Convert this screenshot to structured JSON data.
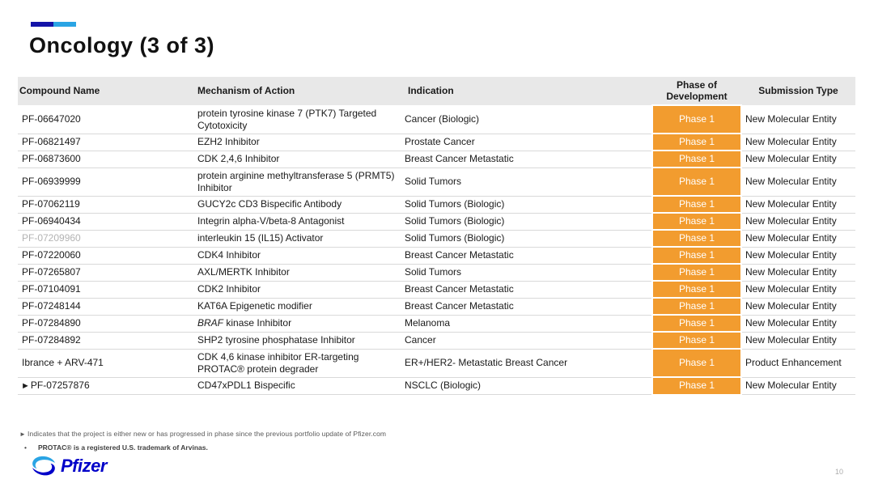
{
  "slide": {
    "title": "Oncology (3 of 3)",
    "page_number": "10",
    "accent_colors": {
      "dark_blue": "#1414A8",
      "light_blue": "#2AA4E4"
    }
  },
  "table": {
    "headers": {
      "compound": "Compound Name",
      "mechanism": "Mechanism of Action",
      "indication": "Indication",
      "phase": "Phase of Development",
      "submission": "Submission Type"
    },
    "phase_badge_color": "#F29C2F",
    "rows": [
      {
        "compound": "PF-06647020",
        "mechanism": "protein tyrosine kinase 7 (PTK7) Targeted Cytotoxicity",
        "indication": "Cancer (Biologic)",
        "phase": "Phase 1",
        "submission": "New Molecular Entity"
      },
      {
        "compound": "PF-06821497",
        "mechanism": "EZH2 Inhibitor",
        "indication": "Prostate Cancer",
        "phase": "Phase 1",
        "submission": "New Molecular Entity"
      },
      {
        "compound": "PF-06873600",
        "mechanism": "CDK 2,4,6 Inhibitor",
        "indication": "Breast Cancer Metastatic",
        "phase": "Phase 1",
        "submission": "New Molecular Entity"
      },
      {
        "compound": "PF-06939999",
        "mechanism": "protein arginine methyltransferase 5 (PRMT5) Inhibitor",
        "indication": "Solid Tumors",
        "phase": "Phase 1",
        "submission": "New Molecular Entity"
      },
      {
        "compound": "PF-07062119",
        "mechanism": "GUCY2c CD3 Bispecific Antibody",
        "indication": "Solid Tumors (Biologic)",
        "phase": "Phase 1",
        "submission": "New Molecular Entity"
      },
      {
        "compound": "PF-06940434",
        "mechanism": "Integrin alpha-V/beta-8 Antagonist",
        "indication": "Solid Tumors (Biologic)",
        "phase": "Phase 1",
        "submission": "New Molecular Entity"
      },
      {
        "compound": "PF-07209960",
        "muted": true,
        "mechanism": "interleukin 15 (IL15) Activator",
        "indication": "Solid Tumors (Biologic)",
        "phase": "Phase 1",
        "submission": "New Molecular Entity"
      },
      {
        "compound": "PF-07220060",
        "mechanism": "CDK4 Inhibitor",
        "indication": "Breast Cancer Metastatic",
        "phase": "Phase 1",
        "submission": "New Molecular Entity"
      },
      {
        "compound": "PF-07265807",
        "mechanism": "AXL/MERTK Inhibitor",
        "indication": "Solid Tumors",
        "phase": "Phase 1",
        "submission": "New Molecular Entity"
      },
      {
        "compound": "PF-07104091",
        "mechanism": "CDK2 Inhibitor",
        "indication": "Breast Cancer Metastatic",
        "phase": "Phase 1",
        "submission": "New Molecular Entity"
      },
      {
        "compound": "PF-07248144",
        "mechanism": "KAT6A Epigenetic modifier",
        "indication": "Breast Cancer Metastatic",
        "phase": "Phase 1",
        "submission": "New Molecular Entity"
      },
      {
        "compound": "PF-07284890",
        "mechanism": "BRAF kinase Inhibitor",
        "mechanism_italic_prefix": "BRAF",
        "indication": "Melanoma",
        "phase": "Phase 1",
        "submission": "New Molecular Entity"
      },
      {
        "compound": "PF-07284892",
        "mechanism": "SHP2 tyrosine phosphatase Inhibitor",
        "indication": "Cancer",
        "phase": "Phase 1",
        "submission": "New Molecular Entity"
      },
      {
        "compound": "Ibrance + ARV-471",
        "mechanism": "CDK 4,6 kinase inhibitor ER-targeting PROTAC® protein degrader",
        "indication": "ER+/HER2- Metastatic Breast Cancer",
        "phase": "Phase 1",
        "submission": "Product Enhancement"
      },
      {
        "compound": "PF-07257876",
        "marker": "►",
        "mechanism": "CD47xPDL1 Bispecific",
        "indication": "NSCLC (Biologic)",
        "phase": "Phase 1",
        "submission": "New Molecular Entity"
      }
    ]
  },
  "footnotes": {
    "marker": "►",
    "note1": "Indicates that the project is either new or has progressed  in phase since the previous portfolio update of Pfizer.com",
    "bullet": "•",
    "note2": "PROTAC® is a registered U.S. trademark of Arvinas."
  },
  "logo": {
    "brand": "Pfizer"
  }
}
